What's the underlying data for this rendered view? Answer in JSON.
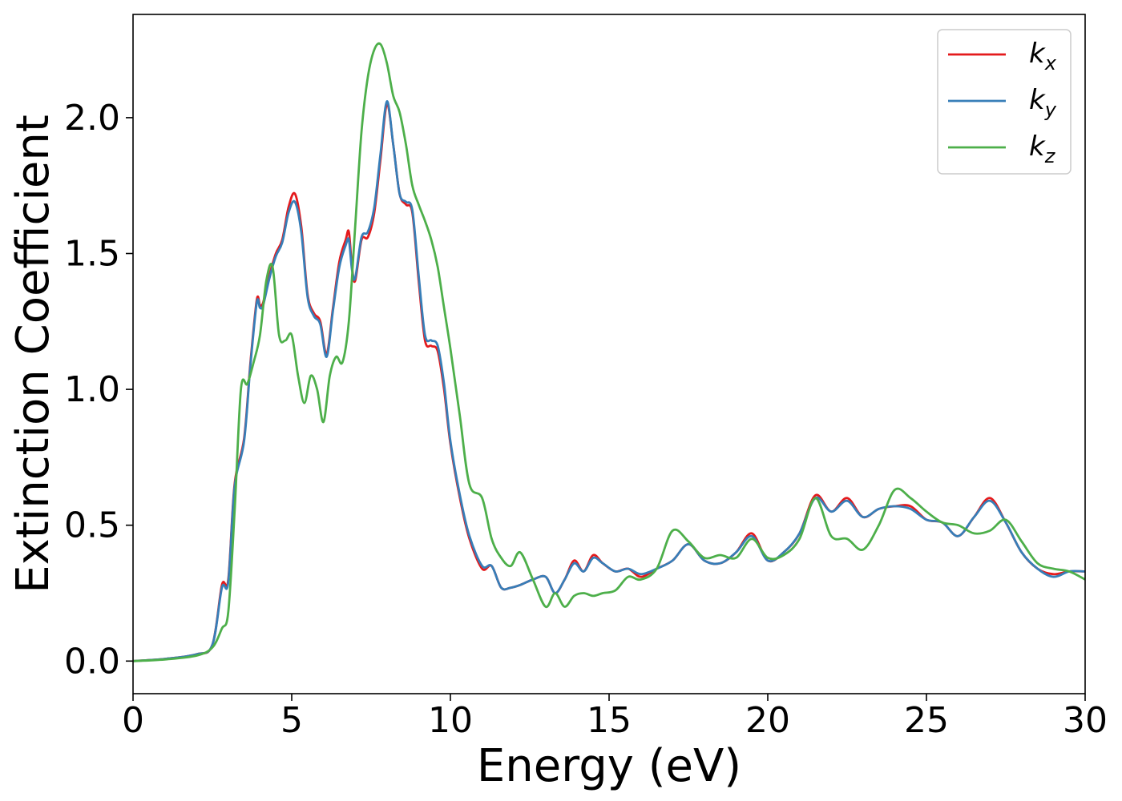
{
  "chart_data": {
    "type": "line",
    "xlabel": "Energy (eV)",
    "ylabel": "Extinction Coefficient",
    "xlim": [
      0,
      30
    ],
    "ylim": [
      -0.12,
      2.38
    ],
    "xticks": [
      "0",
      "5",
      "10",
      "15",
      "20",
      "25",
      "30"
    ],
    "yticks": [
      "0.0",
      "0.5",
      "1.0",
      "1.5",
      "2.0"
    ],
    "grid": false,
    "legend_position": "top-right",
    "series": [
      {
        "name": "k",
        "subscript": "x",
        "color": "#e41a1c",
        "x": [
          0,
          1,
          2,
          2.5,
          2.8,
          3.0,
          3.2,
          3.5,
          3.7,
          3.9,
          4.0,
          4.1,
          4.3,
          4.5,
          4.7,
          4.9,
          5.1,
          5.3,
          5.5,
          5.7,
          5.9,
          6.1,
          6.3,
          6.5,
          6.7,
          6.8,
          6.9,
          7.0,
          7.2,
          7.4,
          7.6,
          7.8,
          8.0,
          8.2,
          8.4,
          8.6,
          8.8,
          9.0,
          9.2,
          9.4,
          9.6,
          9.8,
          10.0,
          10.3,
          10.6,
          11.0,
          11.3,
          11.6,
          11.9,
          12.2,
          12.6,
          13.0,
          13.3,
          13.6,
          13.9,
          14.2,
          14.5,
          14.8,
          15.2,
          15.6,
          16.0,
          16.5,
          17.0,
          17.5,
          18.0,
          18.5,
          19.0,
          19.5,
          20.0,
          20.5,
          21.0,
          21.5,
          22.0,
          22.5,
          23.0,
          23.5,
          24.0,
          24.5,
          25.0,
          25.5,
          26.0,
          26.5,
          27.0,
          27.5,
          28.0,
          28.5,
          29.0,
          29.5,
          30.0
        ],
        "y": [
          0,
          0.008,
          0.025,
          0.06,
          0.28,
          0.3,
          0.65,
          0.82,
          1.1,
          1.33,
          1.31,
          1.32,
          1.42,
          1.5,
          1.55,
          1.67,
          1.72,
          1.6,
          1.35,
          1.28,
          1.25,
          1.13,
          1.3,
          1.47,
          1.55,
          1.58,
          1.45,
          1.4,
          1.55,
          1.56,
          1.65,
          1.85,
          2.05,
          1.9,
          1.72,
          1.68,
          1.65,
          1.4,
          1.18,
          1.16,
          1.14,
          1.0,
          0.8,
          0.6,
          0.45,
          0.34,
          0.35,
          0.27,
          0.27,
          0.28,
          0.3,
          0.31,
          0.25,
          0.3,
          0.37,
          0.33,
          0.39,
          0.36,
          0.33,
          0.34,
          0.31,
          0.34,
          0.37,
          0.43,
          0.37,
          0.36,
          0.4,
          0.47,
          0.37,
          0.4,
          0.47,
          0.61,
          0.55,
          0.6,
          0.53,
          0.56,
          0.57,
          0.57,
          0.52,
          0.51,
          0.46,
          0.53,
          0.6,
          0.51,
          0.4,
          0.34,
          0.32,
          0.33,
          0.33
        ]
      },
      {
        "name": "k",
        "subscript": "y",
        "color": "#377eb8",
        "x": [
          0,
          1,
          2,
          2.5,
          2.8,
          3.0,
          3.2,
          3.5,
          3.7,
          3.9,
          4.0,
          4.1,
          4.3,
          4.5,
          4.7,
          4.9,
          5.1,
          5.3,
          5.5,
          5.7,
          5.9,
          6.1,
          6.3,
          6.5,
          6.7,
          6.8,
          6.9,
          7.0,
          7.2,
          7.4,
          7.6,
          7.8,
          8.0,
          8.2,
          8.4,
          8.6,
          8.8,
          9.0,
          9.2,
          9.4,
          9.6,
          9.8,
          10.0,
          10.3,
          10.6,
          11.0,
          11.3,
          11.6,
          11.9,
          12.2,
          12.6,
          13.0,
          13.3,
          13.6,
          13.9,
          14.2,
          14.5,
          14.8,
          15.2,
          15.6,
          16.0,
          16.5,
          17.0,
          17.5,
          18.0,
          18.5,
          19.0,
          19.5,
          20.0,
          20.5,
          21.0,
          21.5,
          22.0,
          22.5,
          23.0,
          23.5,
          24.0,
          24.5,
          25.0,
          25.5,
          26.0,
          26.5,
          27.0,
          27.5,
          28.0,
          28.5,
          29.0,
          29.5,
          30.0
        ],
        "y": [
          0,
          0.008,
          0.025,
          0.06,
          0.27,
          0.29,
          0.64,
          0.81,
          1.09,
          1.32,
          1.3,
          1.31,
          1.41,
          1.49,
          1.54,
          1.65,
          1.69,
          1.58,
          1.34,
          1.27,
          1.24,
          1.12,
          1.29,
          1.45,
          1.53,
          1.55,
          1.44,
          1.41,
          1.56,
          1.58,
          1.67,
          1.87,
          2.06,
          1.9,
          1.72,
          1.69,
          1.66,
          1.42,
          1.2,
          1.18,
          1.16,
          1.02,
          0.81,
          0.61,
          0.46,
          0.35,
          0.35,
          0.27,
          0.27,
          0.28,
          0.3,
          0.31,
          0.25,
          0.3,
          0.36,
          0.33,
          0.38,
          0.36,
          0.33,
          0.34,
          0.32,
          0.34,
          0.37,
          0.43,
          0.37,
          0.36,
          0.4,
          0.46,
          0.37,
          0.4,
          0.47,
          0.6,
          0.55,
          0.59,
          0.53,
          0.56,
          0.57,
          0.56,
          0.52,
          0.51,
          0.46,
          0.53,
          0.59,
          0.51,
          0.4,
          0.34,
          0.31,
          0.33,
          0.33
        ]
      },
      {
        "name": "k",
        "subscript": "z",
        "color": "#4daf4a",
        "x": [
          0,
          1,
          2,
          2.5,
          2.8,
          3.0,
          3.2,
          3.4,
          3.6,
          3.8,
          4.0,
          4.2,
          4.4,
          4.6,
          4.8,
          5.0,
          5.2,
          5.4,
          5.6,
          5.8,
          6.0,
          6.2,
          6.4,
          6.6,
          6.8,
          7.0,
          7.2,
          7.4,
          7.6,
          7.8,
          8.0,
          8.2,
          8.4,
          8.6,
          8.8,
          9.0,
          9.2,
          9.4,
          9.6,
          9.8,
          10.0,
          10.3,
          10.6,
          11.0,
          11.3,
          11.6,
          11.9,
          12.2,
          12.6,
          13.0,
          13.3,
          13.6,
          13.9,
          14.2,
          14.5,
          14.8,
          15.2,
          15.6,
          16.0,
          16.5,
          17.0,
          17.5,
          18.0,
          18.5,
          19.0,
          19.5,
          20.0,
          20.5,
          21.0,
          21.5,
          22.0,
          22.5,
          23.0,
          23.5,
          24.0,
          24.5,
          25.0,
          25.5,
          26.0,
          26.5,
          27.0,
          27.5,
          28.0,
          28.5,
          29.0,
          29.5,
          30.0
        ],
        "y": [
          0,
          0.006,
          0.02,
          0.05,
          0.12,
          0.18,
          0.55,
          1.0,
          1.02,
          1.1,
          1.2,
          1.4,
          1.45,
          1.2,
          1.18,
          1.2,
          1.05,
          0.95,
          1.05,
          1.0,
          0.88,
          1.05,
          1.12,
          1.1,
          1.25,
          1.6,
          1.95,
          2.15,
          2.25,
          2.27,
          2.2,
          2.08,
          2.02,
          1.9,
          1.75,
          1.68,
          1.62,
          1.55,
          1.45,
          1.3,
          1.15,
          0.9,
          0.65,
          0.6,
          0.45,
          0.38,
          0.35,
          0.4,
          0.3,
          0.2,
          0.25,
          0.2,
          0.24,
          0.25,
          0.24,
          0.25,
          0.26,
          0.31,
          0.3,
          0.34,
          0.48,
          0.44,
          0.38,
          0.39,
          0.38,
          0.45,
          0.38,
          0.39,
          0.45,
          0.6,
          0.46,
          0.45,
          0.41,
          0.5,
          0.63,
          0.6,
          0.55,
          0.51,
          0.5,
          0.47,
          0.48,
          0.52,
          0.44,
          0.36,
          0.34,
          0.33,
          0.3
        ]
      }
    ]
  }
}
